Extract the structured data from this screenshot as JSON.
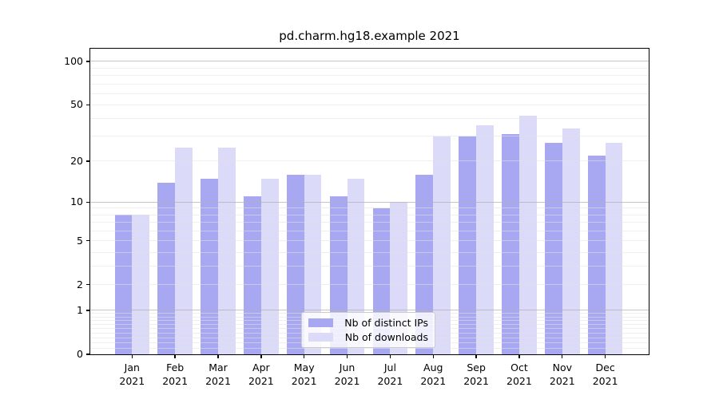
{
  "chart_data": {
    "type": "bar",
    "title": "pd.charm.hg18.example 2021",
    "categories": [
      "Jan",
      "Feb",
      "Mar",
      "Apr",
      "May",
      "Jun",
      "Jul",
      "Aug",
      "Sep",
      "Oct",
      "Nov",
      "Dec"
    ],
    "x_tick_year": "2021",
    "series": [
      {
        "name": "Nb of distinct IPs",
        "color": "#a8a8f2",
        "values": [
          8,
          14,
          15,
          11,
          16,
          11,
          9,
          16,
          30,
          31,
          27,
          22
        ]
      },
      {
        "name": "Nb of downloads",
        "color": "#dbdbf9",
        "values": [
          8,
          25,
          25,
          15,
          16,
          15,
          10,
          30,
          36,
          42,
          34,
          27
        ]
      }
    ],
    "yscale": "log1p",
    "yticks": [
      0,
      1,
      2,
      5,
      10,
      20,
      50,
      100
    ],
    "ylim": [
      0,
      122.5
    ],
    "grid": true,
    "legend_position": "lower center"
  }
}
